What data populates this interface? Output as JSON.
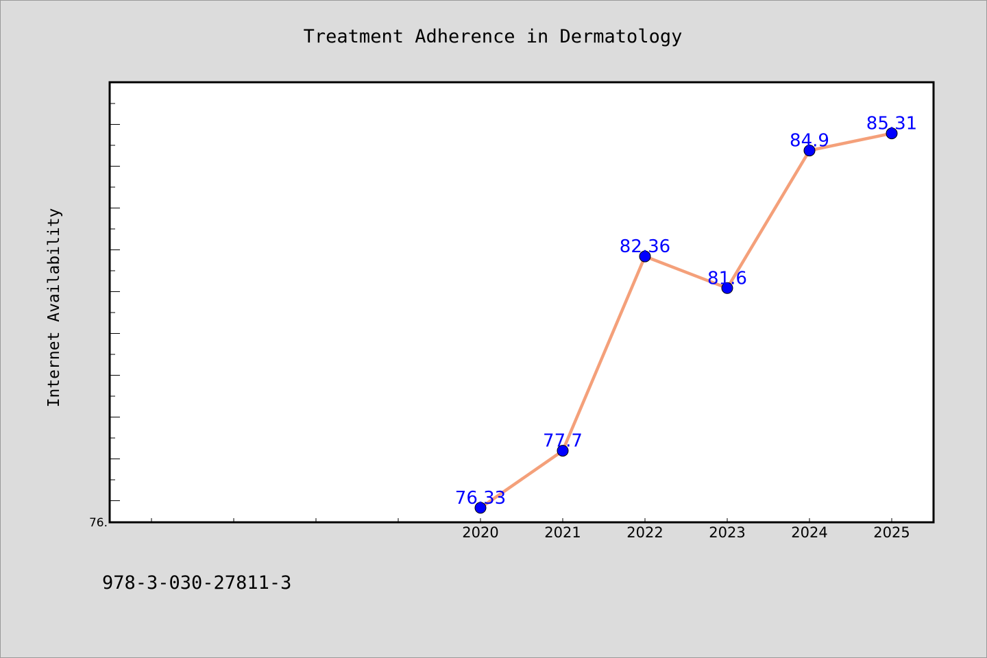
{
  "chart_data": {
    "type": "line",
    "title": "Treatment Adherence in Dermatology",
    "xlabel": "",
    "ylabel": "Internet Availability",
    "categories": [
      "2020",
      "2021",
      "2022",
      "2023",
      "2024",
      "2025"
    ],
    "series": [
      {
        "values": [
          76.33,
          77.7,
          82.36,
          81.6,
          84.9,
          85.31
        ],
        "labels": [
          "76.33",
          "77.7",
          "82.36",
          "81.6",
          "84.9",
          "85.31"
        ]
      }
    ],
    "y_tick_labels": [
      "76."
    ],
    "ylim": [
      76.0,
      86.52
    ],
    "grid": false,
    "legend": "none",
    "colors": {
      "line": "#f4a07a",
      "marker": "#0000ff",
      "data_label": "#0000ff"
    }
  },
  "footer": {
    "code": "978-3-030-27811-3"
  }
}
